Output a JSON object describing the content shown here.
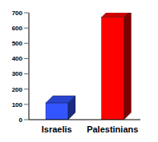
{
  "chart_data": {
    "type": "bar",
    "categories": [
      "Israelis",
      "Palestinians"
    ],
    "values": [
      110,
      670
    ],
    "colors": [
      "#3355ff",
      "#ff0000"
    ],
    "ylim": [
      0,
      700
    ],
    "yticks": [
      0,
      100,
      200,
      300,
      400,
      500,
      600,
      700
    ],
    "grid": false
  }
}
